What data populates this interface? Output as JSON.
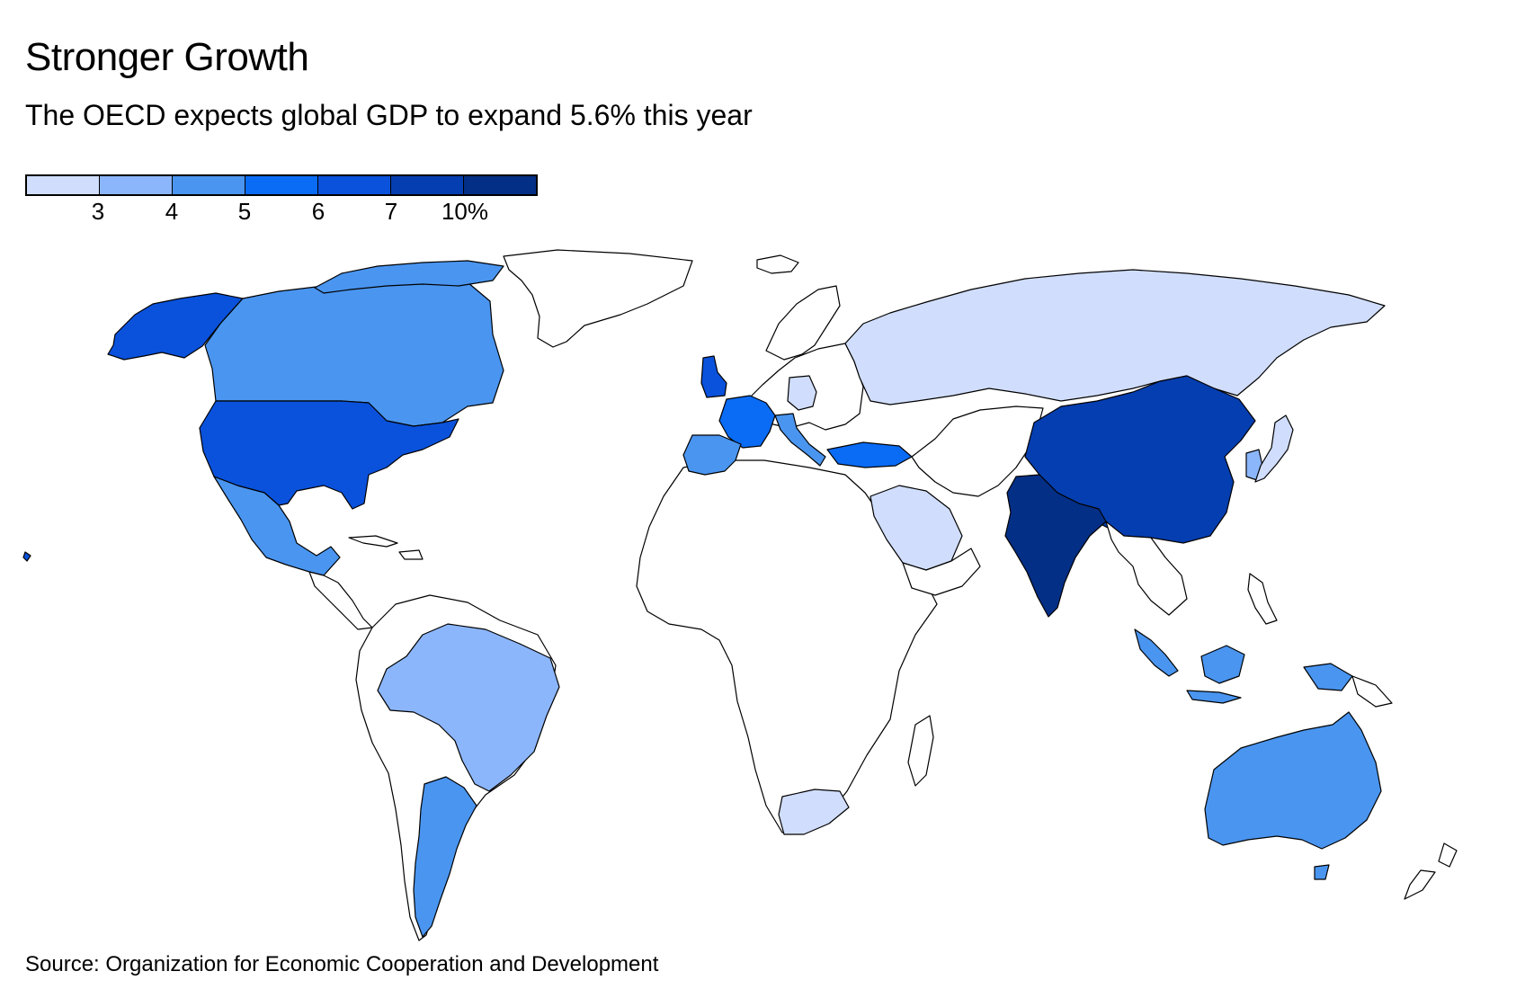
{
  "title": "Stronger Growth",
  "subtitle": "The OECD expects global GDP to expand 5.6% this year",
  "legend": {
    "colors": [
      "#d0ddfc",
      "#8cb6fc",
      "#4a95f0",
      "#0a6cf5",
      "#0a52dc",
      "#053eb0",
      "#042f86"
    ],
    "tick_labels": [
      "3",
      "4",
      "5",
      "6",
      "7",
      "10%"
    ],
    "no_data_color": "#ffffff"
  },
  "source": "Source: Organization for Economic Cooperation and Development",
  "chart_data": {
    "type": "choropleth",
    "metric": "Expected GDP growth this year (%)",
    "bins": [
      "<3",
      "3-4",
      "4-5",
      "5-6",
      "6-7",
      "7-10",
      ">=10"
    ],
    "regions": [
      {
        "name": "Russia",
        "bin": 0
      },
      {
        "name": "Saudi Arabia",
        "bin": 0
      },
      {
        "name": "South Africa",
        "bin": 0
      },
      {
        "name": "Japan",
        "bin": 0
      },
      {
        "name": "Germany",
        "bin": 0
      },
      {
        "name": "Brazil",
        "bin": 1
      },
      {
        "name": "South Korea",
        "bin": 1
      },
      {
        "name": "Canada",
        "bin": 2
      },
      {
        "name": "Mexico",
        "bin": 2
      },
      {
        "name": "Argentina",
        "bin": 2
      },
      {
        "name": "Australia",
        "bin": 2
      },
      {
        "name": "Indonesia",
        "bin": 2
      },
      {
        "name": "Italy",
        "bin": 2
      },
      {
        "name": "Spain",
        "bin": 2
      },
      {
        "name": "France",
        "bin": 3
      },
      {
        "name": "Turkey",
        "bin": 3
      },
      {
        "name": "United States",
        "bin": 4
      },
      {
        "name": "United Kingdom",
        "bin": 4
      },
      {
        "name": "China",
        "bin": 5
      },
      {
        "name": "India",
        "bin": 6
      }
    ]
  }
}
